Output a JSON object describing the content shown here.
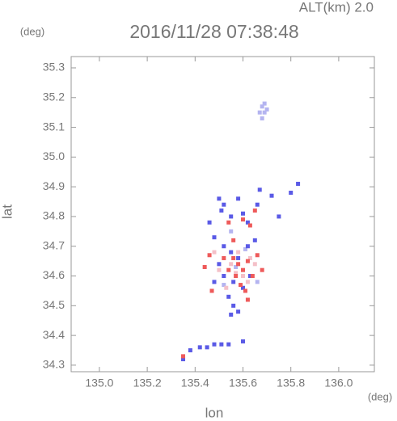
{
  "chart_data": {
    "type": "scatter",
    "title": "2016/11/28 07:38:48",
    "subtitle": "ALT(km) 2.0",
    "x_label": "lon",
    "x_unit": "(deg)",
    "y_label": "lat",
    "y_unit": "(deg)",
    "xlim": [
      134.882,
      136.149
    ],
    "ylim": [
      34.278,
      35.338
    ],
    "xticks": [
      {
        "value": 135.0,
        "label": "135.0"
      },
      135.2,
      135.4,
      135.6,
      135.8,
      {
        "value": 136.0,
        "label": "136.0"
      }
    ],
    "yticks": [
      34.3,
      34.4,
      34.5,
      34.6,
      34.7,
      34.8,
      34.9,
      {
        "value": 35.0,
        "label": "35.0"
      },
      35.1,
      35.2,
      35.3
    ],
    "series": [
      {
        "color": "#b4b4f0",
        "x": [
          135.68,
          135.69,
          135.68,
          135.7,
          135.67,
          135.69,
          135.52,
          135.57,
          135.61,
          135.66,
          135.55
        ],
        "values": [
          35.17,
          35.15,
          35.13,
          35.16,
          35.15,
          35.18,
          34.57,
          34.63,
          34.69,
          34.58,
          34.75
        ]
      },
      {
        "color": "#f4c0c8",
        "x": [
          135.5,
          135.55,
          135.6,
          135.58,
          135.53,
          135.65,
          135.48,
          135.62,
          135.57,
          135.63
        ],
        "values": [
          34.62,
          34.64,
          34.6,
          34.68,
          34.56,
          34.64,
          34.68,
          34.58,
          34.61,
          34.66
        ]
      },
      {
        "color": "#5a5ae6",
        "x": [
          135.5,
          135.52,
          135.51,
          135.55,
          135.58,
          135.6,
          135.62,
          135.66,
          135.67,
          135.72,
          135.75,
          135.8,
          135.83,
          135.46,
          135.48,
          135.52,
          135.55,
          135.58,
          135.62,
          135.65,
          135.5,
          135.52,
          135.56,
          135.6,
          135.63,
          135.48,
          135.54,
          135.56,
          135.58,
          135.55,
          135.42,
          135.45,
          135.48,
          135.51,
          135.54,
          135.38,
          135.6,
          135.35
        ],
        "values": [
          34.86,
          34.84,
          34.82,
          34.8,
          34.86,
          34.81,
          34.78,
          34.84,
          34.89,
          34.87,
          34.8,
          34.88,
          34.91,
          34.78,
          34.73,
          34.7,
          34.68,
          34.66,
          34.7,
          34.72,
          34.64,
          34.6,
          34.58,
          34.56,
          34.6,
          34.58,
          34.53,
          34.5,
          34.48,
          34.47,
          34.36,
          34.36,
          34.37,
          34.37,
          34.37,
          34.35,
          34.38,
          34.32
        ]
      },
      {
        "color": "#ee5a5a",
        "x": [
          135.56,
          135.58,
          135.6,
          135.62,
          135.64,
          135.66,
          135.68,
          135.57,
          135.59,
          135.61,
          135.54,
          135.52,
          135.46,
          135.44,
          135.47,
          135.56,
          135.63,
          135.65,
          135.54,
          135.6,
          135.35,
          135.62
        ],
        "values": [
          34.66,
          34.64,
          34.62,
          34.65,
          34.6,
          34.67,
          34.62,
          34.6,
          34.57,
          34.55,
          34.62,
          34.66,
          34.67,
          34.63,
          34.55,
          34.72,
          34.77,
          34.82,
          34.78,
          34.79,
          34.33,
          34.52
        ]
      }
    ]
  }
}
